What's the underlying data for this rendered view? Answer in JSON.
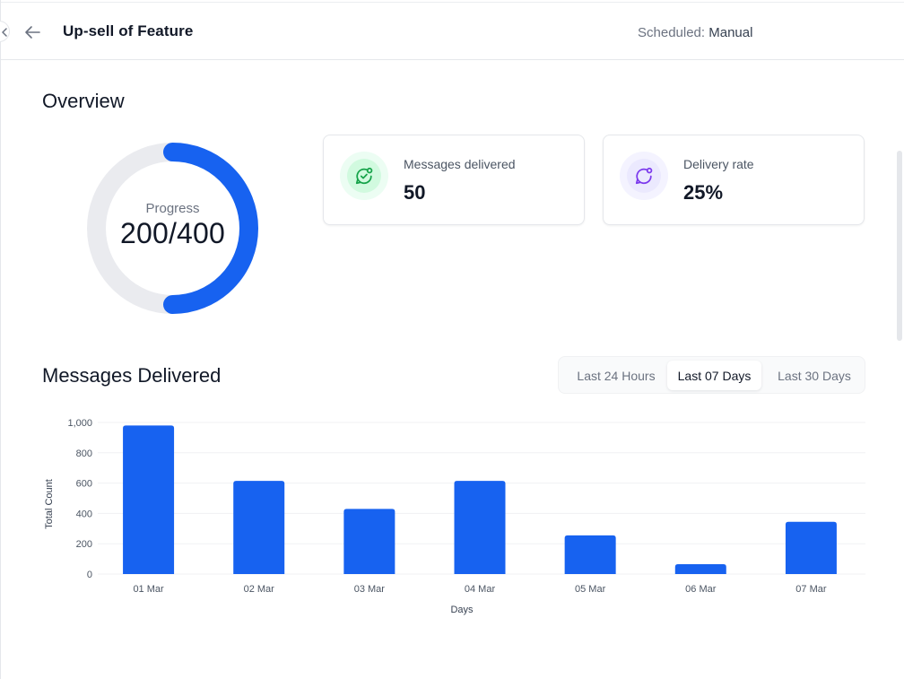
{
  "header": {
    "title": "Up-sell of Feature",
    "schedule_label": "Scheduled:",
    "schedule_value": "Manual"
  },
  "overview": {
    "title": "Overview",
    "progress": {
      "label": "Progress",
      "value_text": "200/400",
      "current": 200,
      "total": 400,
      "color": "#1762f0",
      "track_color": "#eaebef"
    },
    "cards": [
      {
        "label": "Messages delivered",
        "value": "50",
        "icon": "message-check-icon",
        "accent": "#16a34a"
      },
      {
        "label": "Delivery rate",
        "value": "25%",
        "icon": "message-dot-icon",
        "accent": "#7c3aed"
      }
    ]
  },
  "messages_delivered": {
    "title": "Messages Delivered",
    "ranges": [
      {
        "label": "Last 24 Hours",
        "active": false
      },
      {
        "label": "Last 07 Days",
        "active": true
      },
      {
        "label": "Last 30 Days",
        "active": false
      }
    ]
  },
  "chart_data": {
    "type": "bar",
    "categories": [
      "01 Mar",
      "02 Mar",
      "03 Mar",
      "04 Mar",
      "05 Mar",
      "06 Mar",
      "07 Mar"
    ],
    "values": [
      980,
      615,
      430,
      615,
      255,
      65,
      345
    ],
    "xlabel": "Days",
    "ylabel": "Total Count",
    "ylim": [
      0,
      1000
    ],
    "yticks": [
      "0",
      "200",
      "400",
      "600",
      "800",
      "1,000"
    ],
    "ytick_values": [
      0,
      200,
      400,
      600,
      800,
      1000
    ],
    "bar_color": "#1762f0",
    "grid": true
  }
}
